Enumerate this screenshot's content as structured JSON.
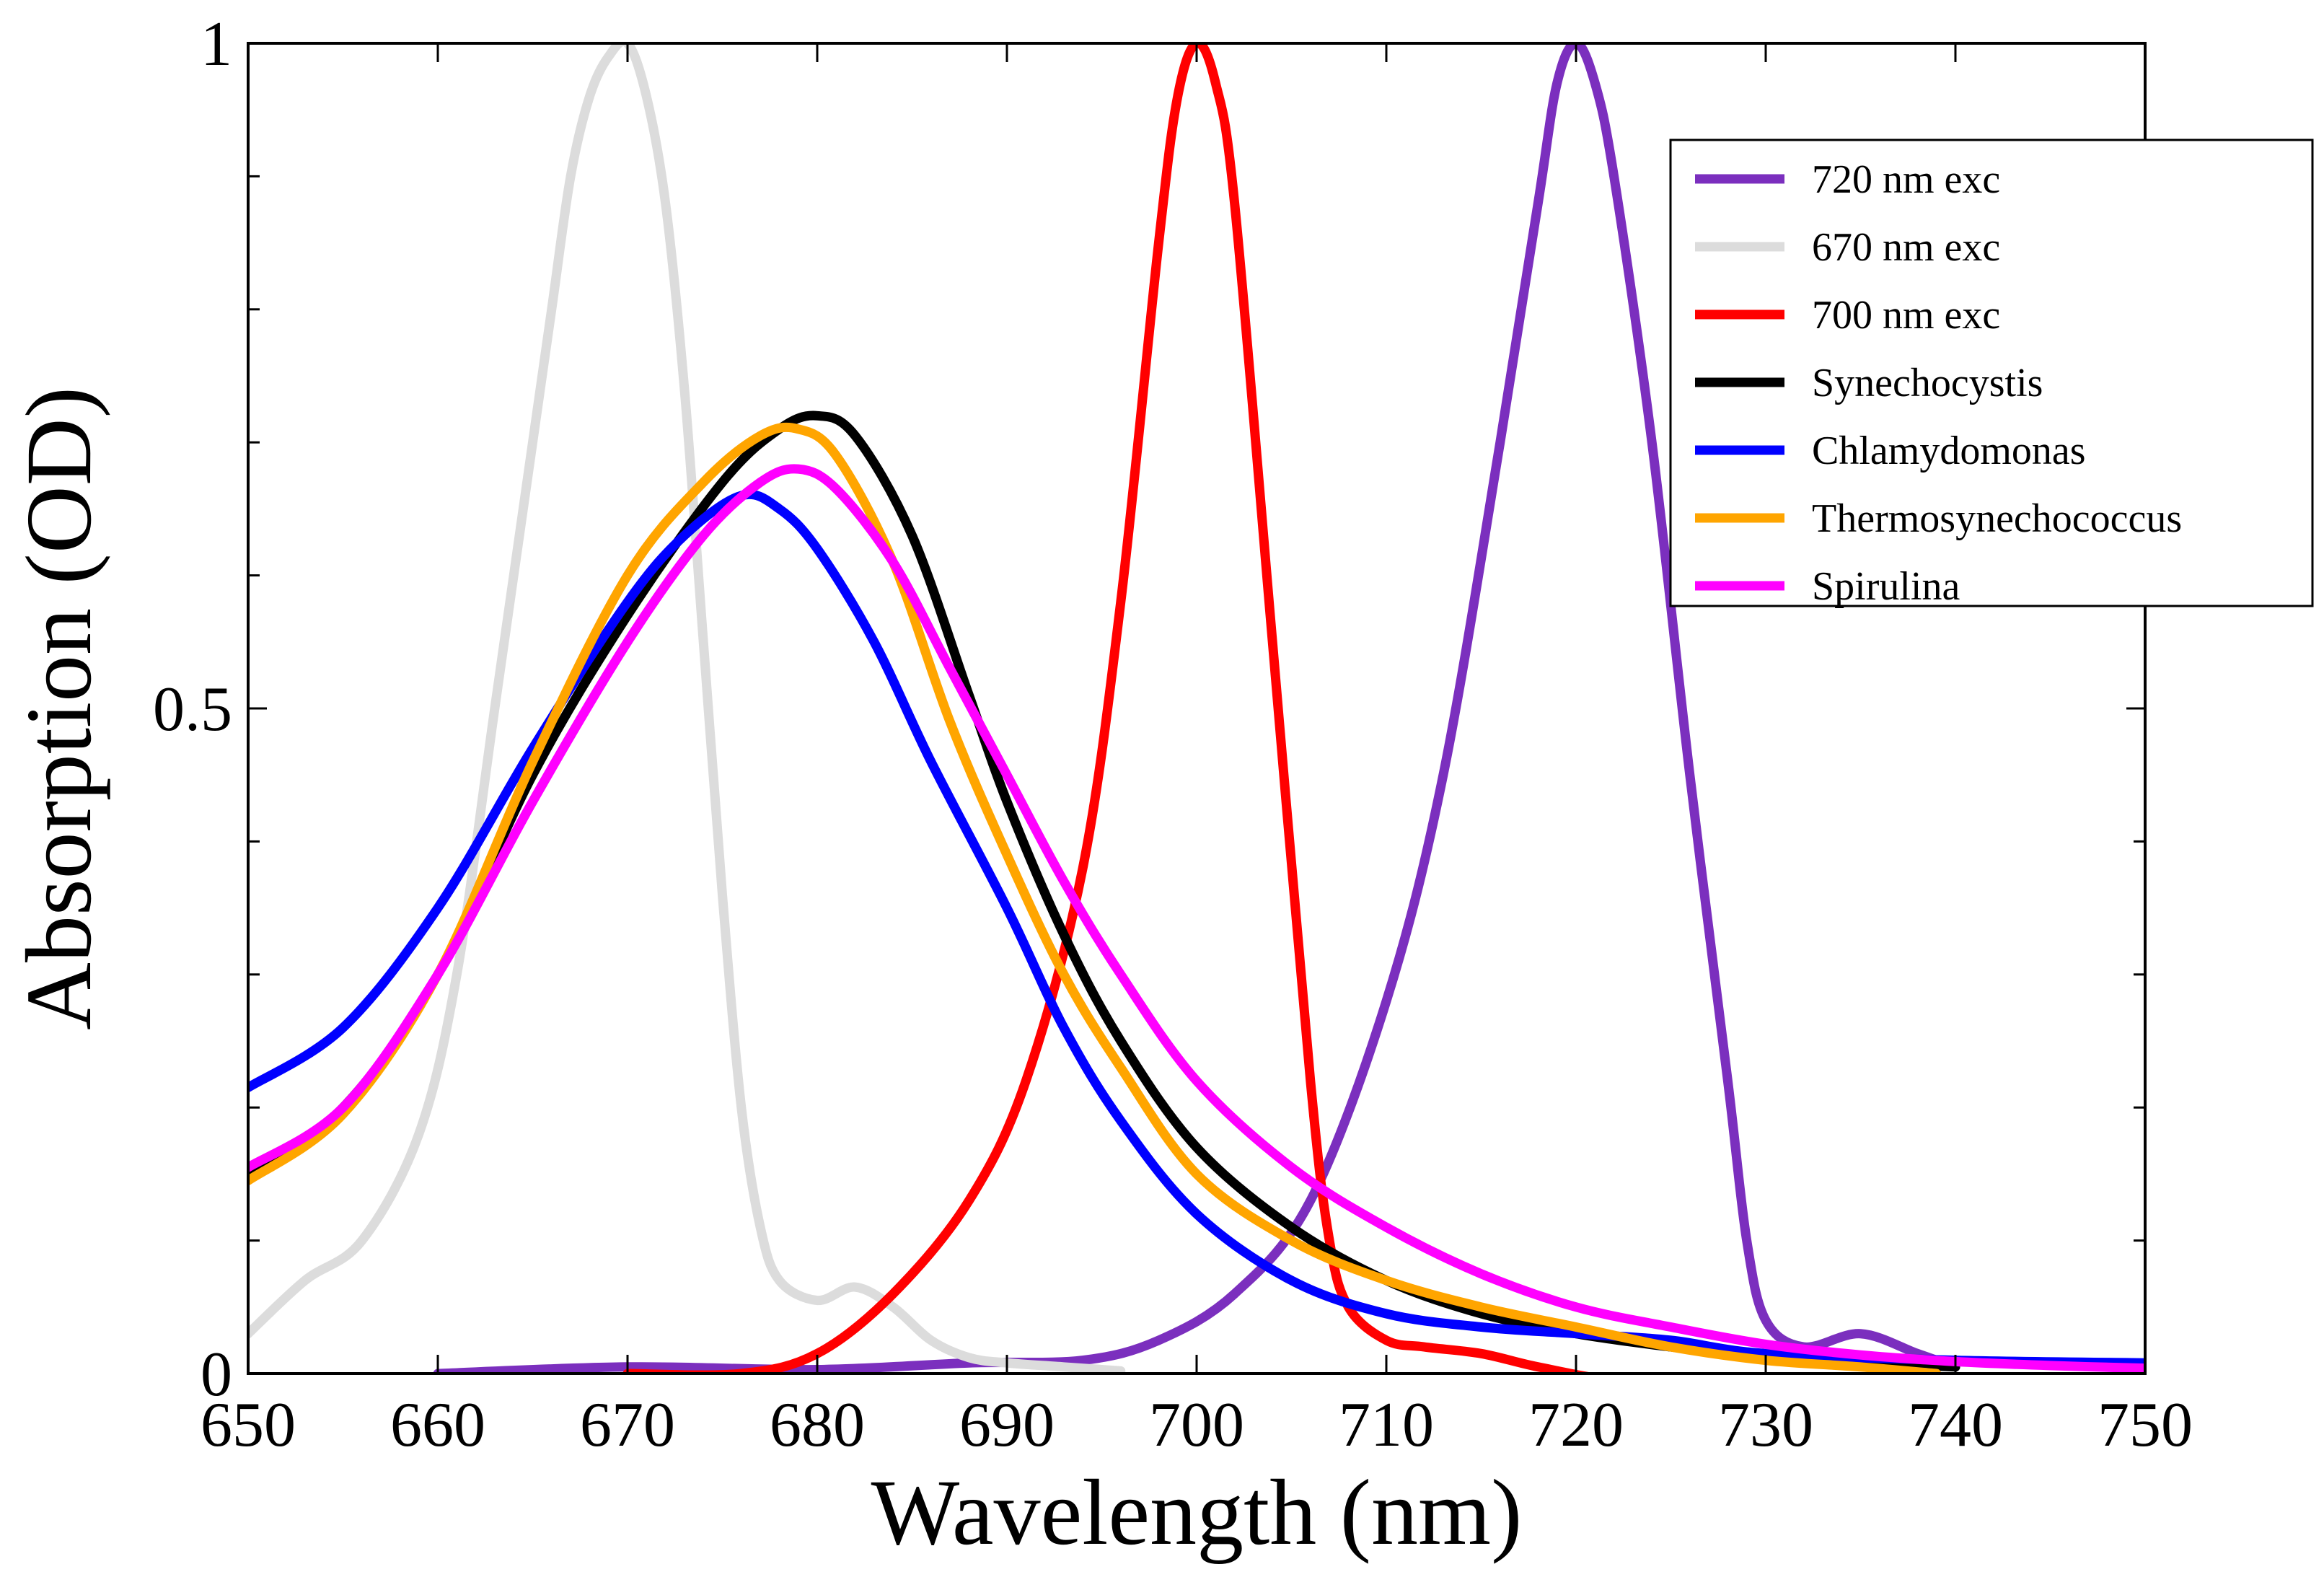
{
  "chart_data": {
    "type": "line",
    "title": "",
    "xlabel": "Wavelength (nm)",
    "ylabel": "Absorption (OD)",
    "xlim": [
      650,
      750
    ],
    "ylim": [
      0,
      1
    ],
    "x_ticks": [
      650,
      660,
      670,
      680,
      690,
      700,
      710,
      720,
      730,
      740,
      750
    ],
    "x_tick_labels": [
      "650",
      "660",
      "670",
      "680",
      "690",
      "700",
      "710",
      "720",
      "730",
      "740",
      "750"
    ],
    "y_major_ticks": [
      0,
      0.5,
      1
    ],
    "y_tick_labels": [
      "0",
      "0.5",
      "1"
    ],
    "y_minor_ticks": [
      0.1,
      0.2,
      0.3,
      0.4,
      0.6,
      0.7,
      0.8,
      0.9
    ],
    "legend_position": "top-right",
    "grid": false,
    "series": [
      {
        "name": "720 nm exc",
        "color": "#7b2fbe",
        "x": [
          660,
          670,
          680,
          688,
          694,
          698,
          702,
          706,
          710,
          713,
          716,
          718,
          719,
          720,
          721,
          722,
          724,
          726,
          728,
          729,
          730,
          732,
          735,
          738,
          740
        ],
        "y": [
          0.0,
          0.005,
          0.003,
          0.008,
          0.01,
          0.025,
          0.06,
          0.13,
          0.28,
          0.45,
          0.7,
          0.88,
          0.97,
          1.0,
          0.97,
          0.9,
          0.7,
          0.45,
          0.22,
          0.1,
          0.04,
          0.02,
          0.03,
          0.015,
          0.005
        ]
      },
      {
        "name": "670 nm exc",
        "color": "#dcdcdc",
        "x": [
          650,
          653,
          656,
          659,
          661,
          663,
          665,
          666,
          667,
          668,
          669,
          670,
          671,
          672,
          673,
          674,
          675,
          676,
          677,
          678,
          680,
          682,
          684,
          686,
          688,
          690,
          693,
          696
        ],
        "y": [
          0.03,
          0.07,
          0.1,
          0.18,
          0.3,
          0.5,
          0.7,
          0.8,
          0.9,
          0.96,
          0.99,
          1.0,
          0.96,
          0.88,
          0.74,
          0.55,
          0.36,
          0.2,
          0.11,
          0.07,
          0.055,
          0.065,
          0.05,
          0.025,
          0.012,
          0.008,
          0.005,
          0.002
        ]
      },
      {
        "name": "700 nm exc",
        "color": "#ff0000",
        "x": [
          670,
          676,
          680,
          684,
          688,
          691,
          694,
          696,
          698,
          699,
          700,
          701,
          702,
          704,
          706,
          707,
          708,
          710,
          712,
          715,
          718,
          722,
          726
        ],
        "y": [
          0.0,
          0.0,
          0.015,
          0.06,
          0.13,
          0.22,
          0.38,
          0.58,
          0.85,
          0.96,
          1.0,
          0.97,
          0.88,
          0.55,
          0.22,
          0.1,
          0.05,
          0.025,
          0.02,
          0.015,
          0.005,
          -0.005,
          -0.005
        ]
      },
      {
        "name": "Synechocystis",
        "color": "#000000",
        "x": [
          650,
          655,
          660,
          665,
          670,
          675,
          678,
          680,
          682,
          685,
          688,
          690,
          693,
          696,
          700,
          705,
          710,
          715,
          720,
          725,
          730,
          735,
          740
        ],
        "y": [
          0.15,
          0.2,
          0.3,
          0.45,
          0.57,
          0.67,
          0.71,
          0.72,
          0.705,
          0.63,
          0.51,
          0.43,
          0.33,
          0.25,
          0.17,
          0.11,
          0.07,
          0.045,
          0.03,
          0.02,
          0.012,
          0.008,
          0.005
        ]
      },
      {
        "name": "Chlamydomonas",
        "color": "#0000ff",
        "x": [
          650,
          655,
          660,
          665,
          670,
          673,
          676,
          678,
          680,
          683,
          686,
          690,
          693,
          696,
          700,
          705,
          710,
          715,
          720,
          725,
          730,
          740,
          750
        ],
        "y": [
          0.215,
          0.26,
          0.35,
          0.47,
          0.58,
          0.63,
          0.66,
          0.65,
          0.62,
          0.55,
          0.46,
          0.35,
          0.26,
          0.19,
          0.12,
          0.07,
          0.045,
          0.035,
          0.03,
          0.025,
          0.015,
          0.01,
          0.008
        ]
      },
      {
        "name": "Thermosynechococcus",
        "color": "#ffa500",
        "x": [
          650,
          655,
          660,
          665,
          670,
          674,
          677,
          679,
          681,
          684,
          687,
          690,
          693,
          696,
          700,
          705,
          710,
          715,
          720,
          725,
          730,
          735,
          739
        ],
        "y": [
          0.145,
          0.195,
          0.3,
          0.46,
          0.6,
          0.67,
          0.705,
          0.71,
          0.69,
          0.61,
          0.49,
          0.39,
          0.3,
          0.23,
          0.15,
          0.1,
          0.07,
          0.05,
          0.035,
          0.02,
          0.01,
          0.005,
          0.0
        ]
      },
      {
        "name": "Spirulina",
        "color": "#ff00ff",
        "x": [
          650,
          655,
          660,
          665,
          670,
          674,
          677,
          679,
          681,
          684,
          687,
          690,
          693,
          696,
          700,
          705,
          710,
          715,
          720,
          725,
          730,
          735,
          740,
          745,
          750
        ],
        "y": [
          0.155,
          0.2,
          0.3,
          0.43,
          0.55,
          0.63,
          0.67,
          0.68,
          0.665,
          0.61,
          0.53,
          0.45,
          0.37,
          0.3,
          0.22,
          0.155,
          0.11,
          0.075,
          0.05,
          0.035,
          0.022,
          0.014,
          0.009,
          0.006,
          0.004
        ]
      }
    ]
  }
}
